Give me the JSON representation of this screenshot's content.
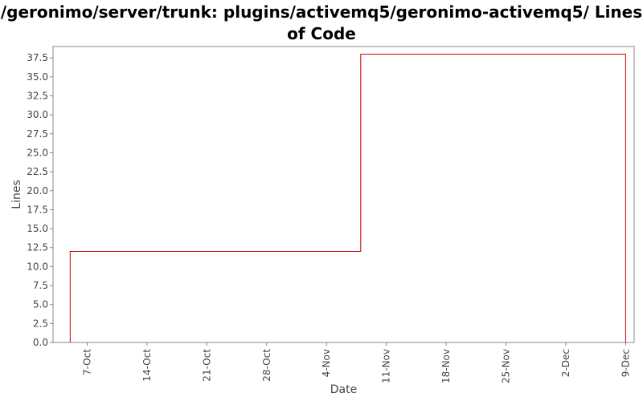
{
  "chart_data": {
    "type": "line",
    "step": true,
    "title": "/geronimo/server/trunk: plugins/activemq5/geronimo-activemq5/ Lines of Code",
    "xlabel": "Date",
    "ylabel": "Lines",
    "ylim": [
      0,
      39
    ],
    "yticks": [
      "0.0",
      "2.5",
      "5.0",
      "7.5",
      "10.0",
      "12.5",
      "15.0",
      "17.5",
      "20.0",
      "22.5",
      "25.0",
      "27.5",
      "30.0",
      "32.5",
      "35.0",
      "37.5"
    ],
    "xlim": [
      "2007-10-03",
      "2007-12-10"
    ],
    "xticks": [
      {
        "date": "2007-10-07",
        "label": "7-Oct"
      },
      {
        "date": "2007-10-14",
        "label": "14-Oct"
      },
      {
        "date": "2007-10-21",
        "label": "21-Oct"
      },
      {
        "date": "2007-10-28",
        "label": "28-Oct"
      },
      {
        "date": "2007-11-04",
        "label": "4-Nov"
      },
      {
        "date": "2007-11-11",
        "label": "11-Nov"
      },
      {
        "date": "2007-11-18",
        "label": "18-Nov"
      },
      {
        "date": "2007-11-25",
        "label": "25-Nov"
      },
      {
        "date": "2007-12-02",
        "label": "2-Dec"
      },
      {
        "date": "2007-12-09",
        "label": "9-Dec"
      }
    ],
    "series": [
      {
        "color": "#cc0000",
        "points": [
          {
            "x": "2007-10-05",
            "y": 0
          },
          {
            "x": "2007-10-05",
            "y": 12
          },
          {
            "x": "2007-11-08",
            "y": 12
          },
          {
            "x": "2007-11-08",
            "y": 38
          },
          {
            "x": "2007-12-09",
            "y": 38
          },
          {
            "x": "2007-12-09",
            "y": 0
          }
        ]
      }
    ],
    "grid": false,
    "legend": "none"
  }
}
